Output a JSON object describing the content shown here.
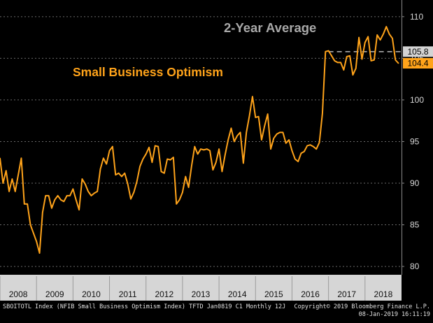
{
  "chart_data": {
    "type": "line",
    "title": "Small Business Optimism",
    "annotation": "2-Year Average",
    "average_value": 105.8,
    "last_value": 104.4,
    "average_label": "105.8",
    "last_label": "104.4",
    "ylim": [
      79,
      112
    ],
    "y_ticks": [
      80,
      85,
      90,
      95,
      100,
      105,
      110
    ],
    "y_tick_labels": [
      "80",
      "85",
      "90",
      "95",
      "100",
      "105",
      "110"
    ],
    "years": [
      "2008",
      "2009",
      "2010",
      "2011",
      "2012",
      "2013",
      "2014",
      "2015",
      "2016",
      "2017",
      "2018"
    ],
    "x_start": "2008-01",
    "x_end": "2019-01",
    "colors": {
      "line": "#ffa31a",
      "title": "#ffa31a",
      "annotation": "#a8a8a8",
      "avg_line": "#b8b8b8",
      "grid": "#6a6a6a",
      "avg_box": "#d4d4d4",
      "last_box": "#ffa31a",
      "year_band": "#d6d6d6"
    },
    "series": [
      {
        "name": "SBOITOTL Index",
        "values": [
          93.0,
          90.0,
          91.5,
          89.0,
          90.5,
          89.0,
          91.0,
          93.0,
          87.5,
          87.5,
          85.0,
          84.0,
          83.0,
          81.6,
          86.5,
          88.5,
          88.5,
          87.0,
          88.0,
          88.5,
          88.0,
          87.8,
          88.5,
          88.5,
          89.3,
          88.0,
          86.8,
          90.5,
          89.9,
          89.0,
          88.5,
          88.8,
          89.0,
          91.7,
          93.0,
          92.3,
          93.9,
          94.4,
          91.0,
          91.2,
          90.8,
          91.2,
          89.9,
          88.1,
          88.9,
          90.2,
          92.0,
          92.9,
          93.5,
          94.3,
          92.5,
          94.5,
          94.4,
          91.4,
          91.2,
          92.9,
          92.8,
          93.1,
          87.5,
          88.0,
          88.9,
          90.8,
          89.5,
          92.1,
          94.4,
          93.5,
          94.1,
          94.0,
          94.1,
          93.9,
          91.6,
          92.5,
          94.1,
          91.4,
          93.4,
          95.2,
          96.6,
          95.0,
          95.7,
          96.1,
          92.4,
          96.1,
          98.1,
          100.4,
          97.9,
          98.0,
          95.2,
          96.9,
          98.3,
          94.1,
          95.4,
          95.9,
          96.1,
          96.1,
          94.8,
          95.2,
          93.9,
          92.9,
          92.6,
          93.6,
          93.8,
          94.5,
          94.6,
          94.4,
          94.1,
          94.9,
          98.4,
          105.8,
          105.9,
          105.3,
          104.7,
          104.5,
          104.5,
          103.6,
          105.2,
          105.3,
          103.0,
          103.8,
          107.5,
          104.9,
          106.9,
          107.6,
          104.7,
          104.8,
          107.8,
          107.2,
          107.9,
          108.8,
          107.9,
          107.4,
          104.8,
          104.4
        ]
      }
    ]
  },
  "footer": {
    "left": "SBOITOTL Index (NFIB Small Business Optimism Index) TFTD Jan0819 C1  Monthly 12J",
    "right_line1": "Copyright© 2019 Bloomberg Finance L.P.",
    "right_line2": "08-Jan-2019 16:11:19"
  }
}
